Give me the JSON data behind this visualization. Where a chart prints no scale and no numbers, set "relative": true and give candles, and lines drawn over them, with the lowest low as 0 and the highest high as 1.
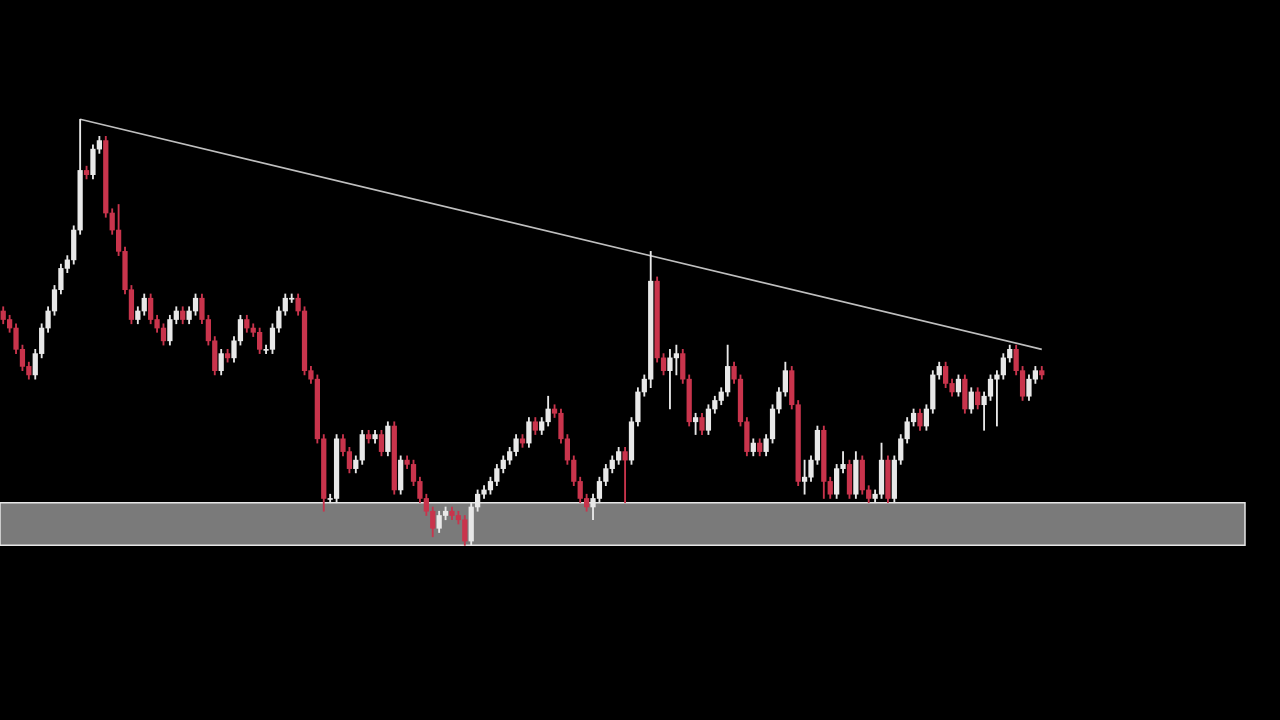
{
  "chart_data": {
    "type": "candlestick",
    "relative": true,
    "categories": [
      null,
      null,
      null,
      null,
      null,
      null,
      null,
      null,
      null,
      null,
      null,
      null,
      null,
      null,
      null,
      null,
      null,
      null,
      null,
      null,
      null,
      null,
      null,
      null,
      null,
      null,
      null,
      null,
      null,
      null,
      null,
      null,
      null,
      null,
      null,
      null,
      null,
      null,
      null,
      null,
      null,
      null,
      null,
      null,
      null,
      null,
      null,
      null,
      null,
      null,
      null,
      null,
      null,
      null,
      null,
      null,
      null,
      null,
      null,
      null,
      null,
      null,
      null,
      null,
      null,
      null,
      null,
      null,
      null,
      null,
      null,
      null,
      null,
      null,
      null,
      null,
      null,
      null,
      null,
      null,
      null,
      null,
      null,
      null,
      null,
      null,
      null,
      null,
      null,
      null,
      null,
      null,
      null,
      null,
      null,
      null,
      null,
      null,
      null,
      null,
      null,
      null,
      null,
      null,
      null,
      null,
      null,
      null,
      null,
      null,
      null,
      null,
      null,
      null,
      null,
      null,
      null,
      null,
      null,
      null,
      null,
      null,
      null,
      null,
      null,
      null,
      null,
      null,
      null,
      null,
      null,
      null,
      null,
      null,
      null,
      null,
      null,
      null,
      null,
      null,
      null,
      null,
      null,
      null,
      null,
      null,
      null,
      null,
      null,
      null,
      null,
      null,
      null,
      null,
      null,
      null,
      null,
      null,
      null,
      null,
      null,
      null,
      null
    ],
    "ohlc": [
      [
        0.55,
        0.56,
        0.52,
        0.53
      ],
      [
        0.53,
        0.54,
        0.5,
        0.51
      ],
      [
        0.51,
        0.52,
        0.45,
        0.46
      ],
      [
        0.46,
        0.47,
        0.41,
        0.42
      ],
      [
        0.42,
        0.43,
        0.39,
        0.4
      ],
      [
        0.4,
        0.46,
        0.39,
        0.45
      ],
      [
        0.45,
        0.52,
        0.44,
        0.51
      ],
      [
        0.51,
        0.56,
        0.5,
        0.55
      ],
      [
        0.55,
        0.61,
        0.54,
        0.6
      ],
      [
        0.6,
        0.66,
        0.59,
        0.65
      ],
      [
        0.65,
        0.68,
        0.64,
        0.67
      ],
      [
        0.67,
        0.75,
        0.66,
        0.74
      ],
      [
        0.74,
        1.0,
        0.73,
        0.88
      ],
      [
        0.88,
        0.89,
        0.86,
        0.87
      ],
      [
        0.87,
        0.94,
        0.86,
        0.93
      ],
      [
        0.93,
        0.96,
        0.92,
        0.95
      ],
      [
        0.95,
        0.96,
        0.77,
        0.78
      ],
      [
        0.78,
        0.79,
        0.73,
        0.74
      ],
      [
        0.74,
        0.8,
        0.68,
        0.69
      ],
      [
        0.69,
        0.7,
        0.59,
        0.6
      ],
      [
        0.6,
        0.61,
        0.52,
        0.53
      ],
      [
        0.53,
        0.56,
        0.52,
        0.55
      ],
      [
        0.55,
        0.59,
        0.54,
        0.58
      ],
      [
        0.58,
        0.59,
        0.52,
        0.53
      ],
      [
        0.53,
        0.54,
        0.5,
        0.51
      ],
      [
        0.51,
        0.52,
        0.47,
        0.48
      ],
      [
        0.48,
        0.54,
        0.47,
        0.53
      ],
      [
        0.53,
        0.56,
        0.52,
        0.55
      ],
      [
        0.55,
        0.56,
        0.52,
        0.53
      ],
      [
        0.53,
        0.56,
        0.52,
        0.55
      ],
      [
        0.55,
        0.59,
        0.54,
        0.58
      ],
      [
        0.58,
        0.59,
        0.52,
        0.53
      ],
      [
        0.53,
        0.54,
        0.47,
        0.48
      ],
      [
        0.48,
        0.49,
        0.4,
        0.41
      ],
      [
        0.41,
        0.46,
        0.4,
        0.45
      ],
      [
        0.45,
        0.46,
        0.43,
        0.44
      ],
      [
        0.44,
        0.49,
        0.43,
        0.48
      ],
      [
        0.48,
        0.54,
        0.47,
        0.53
      ],
      [
        0.53,
        0.54,
        0.5,
        0.51
      ],
      [
        0.51,
        0.52,
        0.49,
        0.5
      ],
      [
        0.5,
        0.51,
        0.45,
        0.46
      ],
      [
        0.46,
        0.47,
        0.45,
        0.46
      ],
      [
        0.46,
        0.52,
        0.45,
        0.51
      ],
      [
        0.51,
        0.56,
        0.5,
        0.55
      ],
      [
        0.55,
        0.59,
        0.54,
        0.58
      ],
      [
        0.58,
        0.59,
        0.57,
        0.58
      ],
      [
        0.58,
        0.59,
        0.54,
        0.55
      ],
      [
        0.55,
        0.56,
        0.4,
        0.41
      ],
      [
        0.41,
        0.42,
        0.38,
        0.39
      ],
      [
        0.39,
        0.4,
        0.24,
        0.25
      ],
      [
        0.25,
        0.26,
        0.08,
        0.11
      ],
      [
        0.11,
        0.12,
        0.1,
        0.11
      ],
      [
        0.11,
        0.26,
        0.1,
        0.25
      ],
      [
        0.25,
        0.26,
        0.21,
        0.22
      ],
      [
        0.22,
        0.23,
        0.17,
        0.18
      ],
      [
        0.18,
        0.21,
        0.17,
        0.2
      ],
      [
        0.2,
        0.27,
        0.19,
        0.26
      ],
      [
        0.26,
        0.27,
        0.24,
        0.25
      ],
      [
        0.25,
        0.27,
        0.24,
        0.26
      ],
      [
        0.26,
        0.27,
        0.21,
        0.22
      ],
      [
        0.22,
        0.29,
        0.21,
        0.28
      ],
      [
        0.28,
        0.29,
        0.12,
        0.13
      ],
      [
        0.13,
        0.21,
        0.12,
        0.2
      ],
      [
        0.2,
        0.21,
        0.18,
        0.19
      ],
      [
        0.19,
        0.2,
        0.14,
        0.15
      ],
      [
        0.15,
        0.16,
        0.1,
        0.11
      ],
      [
        0.11,
        0.12,
        0.07,
        0.08
      ],
      [
        0.08,
        0.09,
        0.02,
        0.04
      ],
      [
        0.04,
        0.08,
        0.03,
        0.07
      ],
      [
        0.07,
        0.09,
        0.06,
        0.08
      ],
      [
        0.08,
        0.09,
        0.06,
        0.07
      ],
      [
        0.07,
        0.08,
        0.05,
        0.06
      ],
      [
        0.06,
        0.07,
        0.0,
        0.01
      ],
      [
        0.01,
        0.1,
        0.0,
        0.09
      ],
      [
        0.09,
        0.13,
        0.08,
        0.12
      ],
      [
        0.12,
        0.14,
        0.11,
        0.13
      ],
      [
        0.13,
        0.16,
        0.12,
        0.15
      ],
      [
        0.15,
        0.19,
        0.14,
        0.18
      ],
      [
        0.18,
        0.21,
        0.17,
        0.2
      ],
      [
        0.2,
        0.23,
        0.19,
        0.22
      ],
      [
        0.22,
        0.26,
        0.21,
        0.25
      ],
      [
        0.25,
        0.26,
        0.23,
        0.24
      ],
      [
        0.24,
        0.3,
        0.23,
        0.29
      ],
      [
        0.29,
        0.3,
        0.26,
        0.27
      ],
      [
        0.27,
        0.3,
        0.26,
        0.29
      ],
      [
        0.29,
        0.35,
        0.28,
        0.32
      ],
      [
        0.32,
        0.33,
        0.3,
        0.31
      ],
      [
        0.31,
        0.32,
        0.24,
        0.25
      ],
      [
        0.25,
        0.26,
        0.19,
        0.2
      ],
      [
        0.2,
        0.21,
        0.14,
        0.15
      ],
      [
        0.15,
        0.16,
        0.1,
        0.11
      ],
      [
        0.11,
        0.12,
        0.08,
        0.09
      ],
      [
        0.09,
        0.12,
        0.06,
        0.11
      ],
      [
        0.11,
        0.16,
        0.1,
        0.15
      ],
      [
        0.15,
        0.19,
        0.14,
        0.18
      ],
      [
        0.18,
        0.21,
        0.17,
        0.2
      ],
      [
        0.2,
        0.23,
        0.19,
        0.22
      ],
      [
        0.22,
        0.23,
        0.1,
        0.2
      ],
      [
        0.2,
        0.3,
        0.19,
        0.29
      ],
      [
        0.29,
        0.37,
        0.28,
        0.36
      ],
      [
        0.36,
        0.4,
        0.35,
        0.39
      ],
      [
        0.39,
        0.69,
        0.37,
        0.62
      ],
      [
        0.62,
        0.63,
        0.43,
        0.44
      ],
      [
        0.44,
        0.45,
        0.4,
        0.41
      ],
      [
        0.41,
        0.46,
        0.32,
        0.44
      ],
      [
        0.44,
        0.47,
        0.4,
        0.45
      ],
      [
        0.45,
        0.46,
        0.38,
        0.39
      ],
      [
        0.39,
        0.4,
        0.28,
        0.29
      ],
      [
        0.29,
        0.31,
        0.26,
        0.3
      ],
      [
        0.3,
        0.31,
        0.26,
        0.27
      ],
      [
        0.27,
        0.33,
        0.26,
        0.32
      ],
      [
        0.32,
        0.35,
        0.31,
        0.34
      ],
      [
        0.34,
        0.37,
        0.33,
        0.36
      ],
      [
        0.36,
        0.47,
        0.35,
        0.42
      ],
      [
        0.42,
        0.43,
        0.38,
        0.39
      ],
      [
        0.39,
        0.4,
        0.28,
        0.29
      ],
      [
        0.29,
        0.3,
        0.21,
        0.22
      ],
      [
        0.22,
        0.25,
        0.21,
        0.24
      ],
      [
        0.24,
        0.25,
        0.21,
        0.22
      ],
      [
        0.22,
        0.26,
        0.21,
        0.25
      ],
      [
        0.25,
        0.33,
        0.24,
        0.32
      ],
      [
        0.32,
        0.37,
        0.31,
        0.36
      ],
      [
        0.36,
        0.43,
        0.35,
        0.41
      ],
      [
        0.41,
        0.42,
        0.32,
        0.33
      ],
      [
        0.33,
        0.34,
        0.14,
        0.15
      ],
      [
        0.15,
        0.2,
        0.12,
        0.16
      ],
      [
        0.16,
        0.21,
        0.15,
        0.2
      ],
      [
        0.2,
        0.28,
        0.19,
        0.27
      ],
      [
        0.27,
        0.28,
        0.11,
        0.15
      ],
      [
        0.15,
        0.16,
        0.11,
        0.12
      ],
      [
        0.12,
        0.19,
        0.11,
        0.18
      ],
      [
        0.18,
        0.22,
        0.17,
        0.19
      ],
      [
        0.19,
        0.2,
        0.11,
        0.12
      ],
      [
        0.12,
        0.22,
        0.11,
        0.2
      ],
      [
        0.2,
        0.21,
        0.12,
        0.13
      ],
      [
        0.13,
        0.14,
        0.1,
        0.11
      ],
      [
        0.11,
        0.13,
        0.1,
        0.12
      ],
      [
        0.12,
        0.24,
        0.11,
        0.2
      ],
      [
        0.2,
        0.21,
        0.1,
        0.11
      ],
      [
        0.11,
        0.21,
        0.1,
        0.2
      ],
      [
        0.2,
        0.26,
        0.19,
        0.25
      ],
      [
        0.25,
        0.3,
        0.24,
        0.29
      ],
      [
        0.29,
        0.32,
        0.28,
        0.31
      ],
      [
        0.31,
        0.32,
        0.27,
        0.28
      ],
      [
        0.28,
        0.33,
        0.27,
        0.32
      ],
      [
        0.32,
        0.41,
        0.31,
        0.4
      ],
      [
        0.4,
        0.43,
        0.39,
        0.42
      ],
      [
        0.42,
        0.43,
        0.37,
        0.38
      ],
      [
        0.38,
        0.39,
        0.35,
        0.36
      ],
      [
        0.36,
        0.4,
        0.35,
        0.39
      ],
      [
        0.39,
        0.4,
        0.31,
        0.32
      ],
      [
        0.32,
        0.37,
        0.31,
        0.36
      ],
      [
        0.36,
        0.37,
        0.32,
        0.33
      ],
      [
        0.33,
        0.36,
        0.27,
        0.35
      ],
      [
        0.35,
        0.4,
        0.34,
        0.39
      ],
      [
        0.39,
        0.41,
        0.28,
        0.4
      ],
      [
        0.4,
        0.45,
        0.39,
        0.44
      ],
      [
        0.44,
        0.47,
        0.43,
        0.46
      ],
      [
        0.46,
        0.47,
        0.4,
        0.41
      ],
      [
        0.41,
        0.42,
        0.34,
        0.35
      ],
      [
        0.35,
        0.4,
        0.34,
        0.39
      ],
      [
        0.39,
        0.42,
        0.38,
        0.41
      ],
      [
        0.41,
        0.42,
        0.39,
        0.4
      ]
    ],
    "colors": [
      "#c9344c",
      "#c9344c",
      "#c9344c",
      "#c9344c",
      "#c9344c",
      "#e8e8e8",
      "#e8e8e8",
      "#e8e8e8",
      "#e8e8e8",
      "#e8e8e8",
      "#e8e8e8",
      "#e8e8e8",
      "#e8e8e8",
      "#c9344c",
      "#e8e8e8",
      "#e8e8e8",
      "#c9344c",
      "#c9344c",
      "#c9344c",
      "#c9344c",
      "#c9344c",
      "#e8e8e8",
      "#e8e8e8",
      "#c9344c",
      "#c9344c",
      "#c9344c",
      "#e8e8e8",
      "#e8e8e8",
      "#c9344c",
      "#e8e8e8",
      "#e8e8e8",
      "#c9344c",
      "#c9344c",
      "#c9344c",
      "#e8e8e8",
      "#c9344c",
      "#e8e8e8",
      "#e8e8e8",
      "#c9344c",
      "#c9344c",
      "#c9344c",
      "#e8e8e8",
      "#e8e8e8",
      "#e8e8e8",
      "#e8e8e8",
      "#e8e8e8",
      "#c9344c",
      "#c9344c",
      "#c9344c",
      "#c9344c",
      "#c9344c",
      "#e8e8e8",
      "#e8e8e8",
      "#c9344c",
      "#c9344c",
      "#e8e8e8",
      "#e8e8e8",
      "#c9344c",
      "#e8e8e8",
      "#c9344c",
      "#e8e8e8",
      "#c9344c",
      "#e8e8e8",
      "#c9344c",
      "#c9344c",
      "#c9344c",
      "#c9344c",
      "#c9344c",
      "#e8e8e8",
      "#e8e8e8",
      "#c9344c",
      "#c9344c",
      "#c9344c",
      "#e8e8e8",
      "#e8e8e8",
      "#e8e8e8",
      "#e8e8e8",
      "#e8e8e8",
      "#e8e8e8",
      "#e8e8e8",
      "#e8e8e8",
      "#c9344c",
      "#e8e8e8",
      "#c9344c",
      "#e8e8e8",
      "#e8e8e8",
      "#c9344c",
      "#c9344c",
      "#c9344c",
      "#c9344c",
      "#c9344c",
      "#c9344c",
      "#e8e8e8",
      "#e8e8e8",
      "#e8e8e8",
      "#e8e8e8",
      "#e8e8e8",
      "#c9344c",
      "#e8e8e8",
      "#e8e8e8",
      "#e8e8e8",
      "#e8e8e8",
      "#c9344c",
      "#c9344c",
      "#e8e8e8",
      "#e8e8e8",
      "#c9344c",
      "#c9344c",
      "#e8e8e8",
      "#c9344c",
      "#e8e8e8",
      "#e8e8e8",
      "#e8e8e8",
      "#e8e8e8",
      "#c9344c",
      "#c9344c",
      "#c9344c",
      "#e8e8e8",
      "#c9344c",
      "#e8e8e8",
      "#e8e8e8",
      "#e8e8e8",
      "#e8e8e8",
      "#c9344c",
      "#c9344c",
      "#e8e8e8",
      "#e8e8e8",
      "#e8e8e8",
      "#c9344c",
      "#c9344c",
      "#e8e8e8",
      "#e8e8e8",
      "#c9344c",
      "#e8e8e8",
      "#c9344c",
      "#c9344c",
      "#e8e8e8",
      "#e8e8e8",
      "#c9344c",
      "#e8e8e8",
      "#e8e8e8",
      "#e8e8e8",
      "#e8e8e8",
      "#c9344c",
      "#e8e8e8",
      "#e8e8e8",
      "#e8e8e8",
      "#c9344c",
      "#c9344c",
      "#e8e8e8",
      "#c9344c",
      "#e8e8e8",
      "#c9344c",
      "#e8e8e8",
      "#e8e8e8",
      "#e8e8e8",
      "#e8e8e8",
      "#e8e8e8",
      "#c9344c",
      "#c9344c",
      "#e8e8e8",
      "#e8e8e8",
      "#c9344c"
    ],
    "series": [
      {
        "type": "line",
        "color": "#bfbfbf",
        "values": [
          null,
          null,
          null,
          null,
          null,
          null,
          null,
          null,
          null,
          null,
          null,
          null,
          1.0,
          null,
          null,
          null,
          null,
          null,
          null,
          null,
          null,
          null,
          null,
          null,
          null,
          null,
          null,
          null,
          null,
          null,
          null,
          null,
          null,
          null,
          null,
          null,
          null,
          null,
          null,
          null,
          null,
          null,
          null,
          null,
          null,
          null,
          null,
          null,
          null,
          null,
          null,
          null,
          null,
          null,
          null,
          null,
          null,
          null,
          null,
          null,
          null,
          null,
          null,
          null,
          null,
          null,
          null,
          null,
          null,
          null,
          null,
          null,
          null,
          null,
          null,
          null,
          null,
          null,
          null,
          null,
          null,
          null,
          null,
          null,
          null,
          null,
          null,
          null,
          null,
          null,
          null,
          null,
          null,
          null,
          null,
          null,
          null,
          null,
          null,
          null,
          null,
          null,
          null,
          null,
          null,
          null,
          null,
          null,
          null,
          null,
          null,
          null,
          null,
          null,
          null,
          null,
          null,
          null,
          null,
          null,
          null,
          null,
          null,
          null,
          null,
          null,
          null,
          null,
          null,
          null,
          null,
          null,
          null,
          null,
          null,
          null,
          null,
          null,
          null,
          null,
          null,
          null,
          null,
          null,
          null,
          null,
          null,
          null,
          null,
          null,
          null,
          null,
          null,
          null,
          null,
          null,
          null,
          null,
          null,
          null,
          null,
          null,
          0.46
        ]
      }
    ],
    "bands": [
      {
        "axis": "y",
        "from": 0,
        "to": 0.1,
        "color": "#7a7a7a"
      }
    ]
  }
}
